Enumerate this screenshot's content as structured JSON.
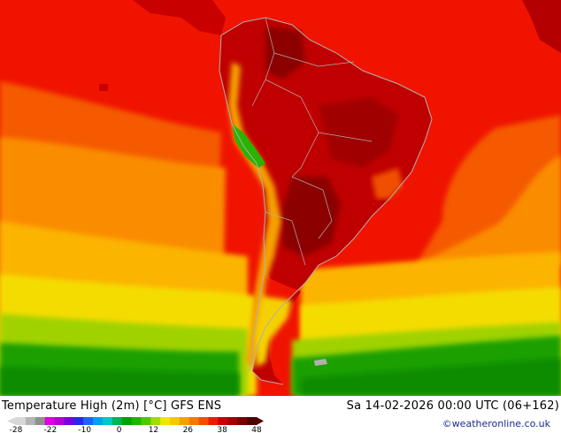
{
  "map": {
    "title": "Temperature High (2m) [°C] GFS ENS",
    "run_label": "Sa 14-02-2026 00:00 UTC (06+162)",
    "credit": "©weatheronline.co.uk",
    "colors": {
      "ocean_hot": "#f01400",
      "ocean_warm": "#f55a00",
      "ocean_orange": "#fa8c00",
      "ocean_amber": "#fbb400",
      "ocean_yellow": "#f5dc00",
      "cold_green": "#1aa000",
      "land_hot": "#b40000",
      "land_hotter": "#8c0000",
      "coast": "#b0b0b0"
    }
  },
  "legend": {
    "tick_labels": [
      "-28",
      "-22",
      "-10",
      "0",
      "12",
      "26",
      "38",
      "48"
    ],
    "colors": [
      "#d8d8d8",
      "#b4b4b4",
      "#909090",
      "#e000e0",
      "#b400d4",
      "#7c00d8",
      "#2828e8",
      "#1e64f0",
      "#00a0f0",
      "#00c8c8",
      "#00b45a",
      "#00a000",
      "#1eb400",
      "#50c800",
      "#a0dc00",
      "#f0e600",
      "#f5c800",
      "#f5a000",
      "#f57800",
      "#f05000",
      "#e61e00",
      "#c80000",
      "#a00000",
      "#780000",
      "#500000"
    ]
  }
}
